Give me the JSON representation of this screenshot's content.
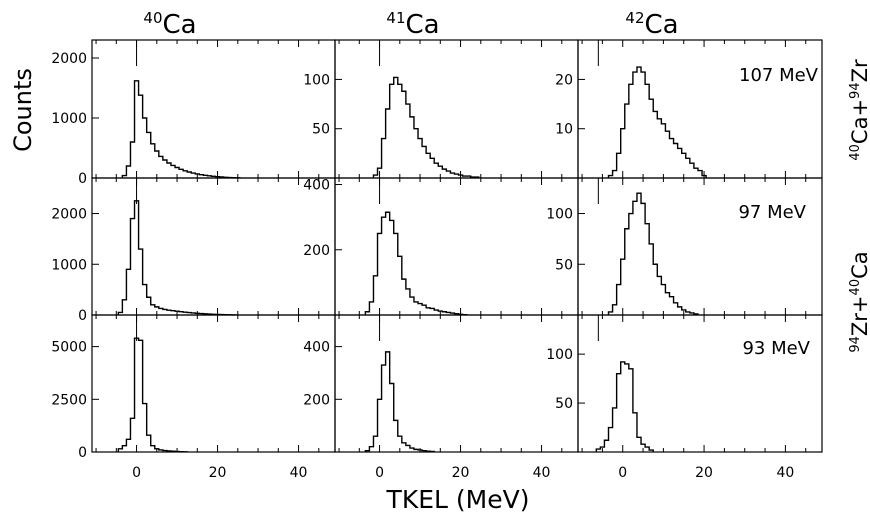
{
  "figure": {
    "ylabel": "Counts",
    "xlabel": "TKEL (MeV)",
    "columns": [
      {
        "mass": "40",
        "element": "Ca"
      },
      {
        "mass": "41",
        "element": "Ca"
      },
      {
        "mass": "42",
        "element": "Ca"
      }
    ],
    "rows": [
      {
        "energy": "107 MeV"
      },
      {
        "energy": "97 MeV"
      },
      {
        "energy": "93 MeV"
      }
    ],
    "reaction_labels": [
      {
        "m1": "40",
        "e1": "Ca",
        "plus": "+",
        "m2": "94",
        "e2": "Zr"
      },
      {
        "m1": "94",
        "e1": "Zr",
        "plus": "+",
        "m2": "40",
        "e2": "Ca"
      }
    ]
  },
  "chart_data": {
    "type": "bar",
    "style": "step-histogram",
    "xlabel": "TKEL (MeV)",
    "ylabel": "Counts",
    "xlim": [
      -11,
      49
    ],
    "xticks": [
      0,
      20,
      40
    ],
    "bin_width": 1,
    "panels": [
      {
        "row": 0,
        "col": 0,
        "ylim": [
          0,
          2300
        ],
        "yticks": [
          0,
          1000,
          2000
        ],
        "marker_x": 0,
        "x": [
          -3,
          -2,
          -1,
          0,
          1,
          2,
          3,
          4,
          5,
          6,
          7,
          8,
          9,
          10,
          11,
          12,
          13,
          14,
          15,
          16,
          17,
          18,
          19,
          20,
          21,
          22,
          23,
          24,
          25
        ],
        "values": [
          40,
          200,
          600,
          1620,
          1380,
          1000,
          760,
          570,
          450,
          360,
          300,
          250,
          210,
          175,
          145,
          120,
          100,
          82,
          68,
          55,
          45,
          36,
          28,
          22,
          17,
          12,
          8,
          5,
          3
        ]
      },
      {
        "row": 0,
        "col": 1,
        "ylim": [
          0,
          140
        ],
        "yticks": [
          50,
          100
        ],
        "marker_x": 0,
        "x": [
          -1,
          0,
          1,
          2,
          3,
          4,
          5,
          6,
          7,
          8,
          9,
          10,
          11,
          12,
          13,
          14,
          15,
          16,
          17,
          18,
          19,
          20,
          21,
          22,
          23,
          24
        ],
        "values": [
          3,
          10,
          40,
          70,
          95,
          102,
          95,
          88,
          75,
          62,
          50,
          40,
          32,
          25,
          20,
          15,
          12,
          9,
          7,
          5,
          4,
          3,
          2,
          2,
          1,
          1
        ]
      },
      {
        "row": 0,
        "col": 2,
        "ylim": [
          0,
          28
        ],
        "yticks": [
          10,
          20
        ],
        "marker_x": -6,
        "x": [
          -3,
          -2,
          -1,
          0,
          1,
          2,
          3,
          4,
          5,
          6,
          7,
          8,
          9,
          10,
          11,
          12,
          13,
          14,
          15,
          16,
          17,
          18,
          19,
          20
        ],
        "values": [
          0.5,
          1.5,
          5,
          10,
          15,
          19,
          21.5,
          22.5,
          21.5,
          19,
          16,
          13.5,
          12,
          11,
          9.5,
          8,
          7,
          6,
          5,
          4,
          3,
          2,
          1.5,
          0.5
        ]
      },
      {
        "row": 1,
        "col": 0,
        "ylim": [
          0,
          2700
        ],
        "yticks": [
          0,
          1000,
          2000
        ],
        "marker_x": 0,
        "x": [
          -4,
          -3,
          -2,
          -1,
          0,
          1,
          2,
          3,
          4,
          5,
          6,
          7,
          8,
          9,
          10,
          11,
          12,
          13,
          14,
          15,
          16,
          17,
          18,
          19,
          20,
          21,
          22,
          23,
          24
        ],
        "values": [
          50,
          300,
          900,
          1900,
          2250,
          1300,
          600,
          350,
          200,
          160,
          130,
          110,
          95,
          85,
          75,
          65,
          55,
          48,
          40,
          34,
          28,
          22,
          18,
          14,
          10,
          8,
          6,
          4,
          2
        ]
      },
      {
        "row": 1,
        "col": 1,
        "ylim": [
          0,
          420
        ],
        "yticks": [
          200,
          400
        ],
        "marker_x": 0,
        "x": [
          -3,
          -2,
          -1,
          0,
          1,
          2,
          3,
          4,
          5,
          6,
          7,
          8,
          9,
          10,
          11,
          12,
          13,
          14,
          15,
          16,
          17,
          18,
          19,
          20,
          21
        ],
        "values": [
          10,
          40,
          120,
          250,
          300,
          315,
          290,
          250,
          180,
          110,
          80,
          55,
          40,
          35,
          30,
          22,
          20,
          15,
          12,
          10,
          8,
          6,
          4,
          2,
          1
        ]
      },
      {
        "row": 1,
        "col": 2,
        "ylim": [
          0,
          135
        ],
        "yticks": [
          50,
          100
        ],
        "marker_x": -6,
        "x": [
          -3,
          -2,
          -1,
          0,
          1,
          2,
          3,
          4,
          5,
          6,
          7,
          8,
          9,
          10,
          11,
          12,
          13,
          14,
          15,
          16,
          17,
          18
        ],
        "values": [
          3,
          10,
          30,
          55,
          85,
          100,
          112,
          120,
          110,
          90,
          70,
          50,
          38,
          30,
          22,
          18,
          12,
          8,
          5,
          3,
          2,
          1
        ]
      },
      {
        "row": 2,
        "col": 0,
        "ylim": [
          0,
          6500
        ],
        "yticks": [
          0,
          2500,
          5000
        ],
        "marker_x": 0,
        "x": [
          -4,
          -3,
          -2,
          -1,
          0,
          1,
          2,
          3,
          4,
          5,
          6,
          7,
          8,
          9,
          10,
          11,
          12
        ],
        "values": [
          150,
          300,
          600,
          1600,
          5400,
          5300,
          2300,
          800,
          300,
          150,
          100,
          70,
          50,
          40,
          25,
          15,
          10
        ]
      },
      {
        "row": 2,
        "col": 1,
        "ylim": [
          0,
          520
        ],
        "yticks": [
          200,
          400
        ],
        "marker_x": 0,
        "x": [
          -3,
          -2,
          -1,
          0,
          1,
          2,
          3,
          4,
          5,
          6,
          7,
          8,
          9,
          10,
          11,
          12,
          13
        ],
        "values": [
          5,
          20,
          60,
          200,
          330,
          380,
          260,
          120,
          60,
          35,
          25,
          15,
          10,
          8,
          5,
          3,
          2
        ]
      },
      {
        "row": 2,
        "col": 2,
        "ylim": [
          0,
          140
        ],
        "yticks": [
          50,
          100
        ],
        "marker_x": -6,
        "x": [
          -6,
          -5,
          -4,
          -3,
          -2,
          -1,
          0,
          1,
          2,
          3,
          4,
          5,
          6,
          7
        ],
        "values": [
          3,
          5,
          12,
          25,
          45,
          80,
          92,
          90,
          85,
          40,
          15,
          8,
          5,
          2
        ]
      }
    ]
  }
}
